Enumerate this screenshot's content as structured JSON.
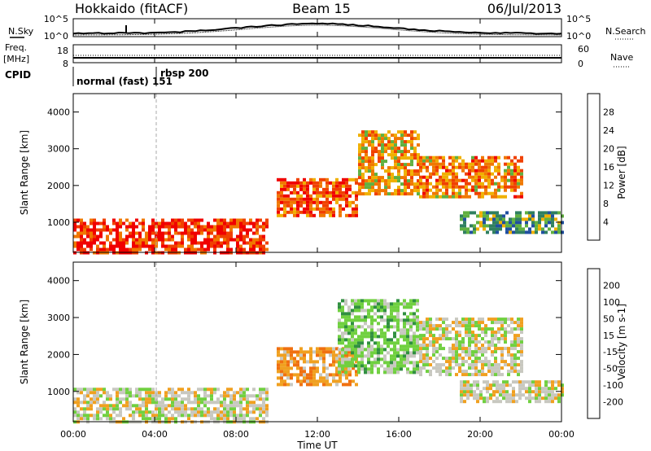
{
  "header": {
    "station": "Hokkaido (fitACF)",
    "beam": "Beam 15",
    "date": "06/Jul/2013"
  },
  "panels": {
    "nsky": {
      "left_label": "N.Sky",
      "right_label": "N.Search",
      "left_ticks": [
        "10^5",
        "10^0"
      ],
      "right_ticks": [
        "10^5",
        "10^0"
      ]
    },
    "freq": {
      "left_label_line1": "Freq.",
      "left_label_line2": "[MHz]",
      "right_label": "Nave",
      "left_ticks": [
        "18",
        "8"
      ],
      "right_ticks": [
        "60",
        "0"
      ]
    },
    "cpid": {
      "label": "CPID",
      "modes": [
        {
          "name": "normal (fast) 151",
          "start_hour": 0
        },
        {
          "name": "rbsp 200",
          "start_hour": 4.1
        }
      ]
    }
  },
  "x_axis": {
    "label": "Time UT",
    "ticks": [
      "00:00",
      "04:00",
      "08:00",
      "12:00",
      "16:00",
      "20:00",
      "00:00"
    ],
    "hours": [
      0,
      4,
      8,
      12,
      16,
      20,
      24
    ]
  },
  "y_axis": {
    "label": "Slant Range [km]",
    "ticks": [
      "1000",
      "2000",
      "3000",
      "4000"
    ],
    "range_km": [
      180,
      4500
    ]
  },
  "colorbars": {
    "power": {
      "title": "Power [dB]",
      "ticks": [
        "28",
        "24",
        "20",
        "16",
        "12",
        "8",
        "4"
      ],
      "colors": [
        "#f00000",
        "#f04000",
        "#f07800",
        "#f0b000",
        "#60b040",
        "#308060",
        "#2050a0",
        "#1020e0"
      ]
    },
    "velocity": {
      "title": "Velocity [m s-1]",
      "ticks": [
        "200",
        "100",
        "50",
        "15",
        "-15",
        "-50",
        "-100",
        "-200"
      ],
      "colors": [
        "#1030c0",
        "#206080",
        "#309040",
        "#70d040",
        "#c8c8c0",
        "#f0a020",
        "#f07010",
        "#f03010",
        "#e00000"
      ]
    }
  },
  "chart_data": [
    {
      "type": "heatmap",
      "title": "Power [dB]",
      "xlabel": "Time UT",
      "ylabel": "Slant Range [km]",
      "xlim_hours": [
        0,
        24
      ],
      "ylim": [
        180,
        4500
      ],
      "scale": [
        0,
        30
      ],
      "echo_bands": [
        {
          "hours": [
            0,
            9.5
          ],
          "range_km": [
            200,
            1100
          ],
          "power_db": 28
        },
        {
          "hours": [
            10,
            14
          ],
          "range_km": [
            1200,
            2200
          ],
          "power_db": 25
        },
        {
          "hours": [
            14,
            17
          ],
          "range_km": [
            1800,
            3500
          ],
          "power_db": 20
        },
        {
          "hours": [
            17,
            22
          ],
          "range_km": [
            1700,
            2800
          ],
          "power_db": 22
        },
        {
          "hours": [
            19,
            24
          ],
          "range_km": [
            700,
            1300
          ],
          "power_db": 12
        }
      ]
    },
    {
      "type": "heatmap",
      "title": "Velocity [m s-1]",
      "xlabel": "Time UT",
      "ylabel": "Slant Range [km]",
      "xlim_hours": [
        0,
        24
      ],
      "ylim": [
        180,
        4500
      ],
      "scale": [
        -200,
        200
      ],
      "echo_bands": [
        {
          "hours": [
            0,
            9.5
          ],
          "range_km": [
            200,
            1100
          ],
          "velocity_ms": 0
        },
        {
          "hours": [
            10,
            14
          ],
          "range_km": [
            1200,
            2200
          ],
          "velocity_ms": -40
        },
        {
          "hours": [
            13,
            17
          ],
          "range_km": [
            1500,
            3500
          ],
          "velocity_ms": 30
        },
        {
          "hours": [
            17,
            22
          ],
          "range_km": [
            1500,
            3000
          ],
          "velocity_ms": 0
        },
        {
          "hours": [
            19,
            24
          ],
          "range_km": [
            700,
            1300
          ],
          "velocity_ms": 0
        }
      ]
    }
  ]
}
